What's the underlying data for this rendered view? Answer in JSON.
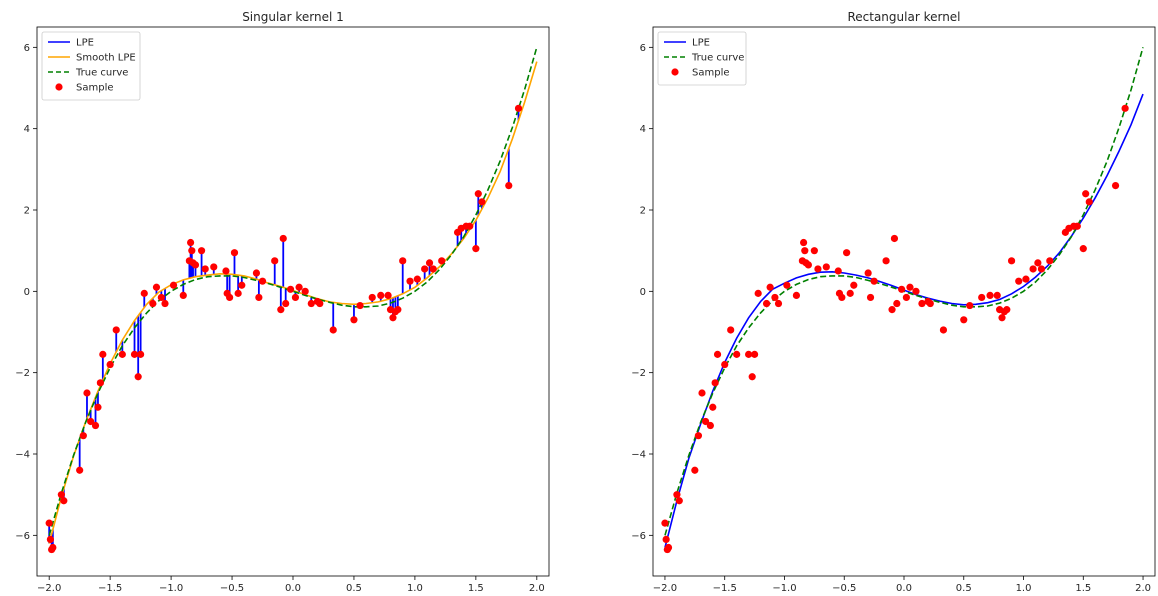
{
  "chart_data": [
    {
      "type": "line",
      "title": "Singular kernel 1",
      "xlabel": "",
      "ylabel": "",
      "xlim": [
        -2.1,
        2.1
      ],
      "ylim": [
        -7,
        6.5
      ],
      "xticks": [
        -2.0,
        -1.5,
        -1.0,
        -0.5,
        0.0,
        0.5,
        1.0,
        1.5,
        2.0
      ],
      "xtick_labels": [
        "−2.0",
        "−1.5",
        "−1.0",
        "−0.5",
        "0.0",
        "0.5",
        "1.0",
        "1.5",
        "2.0"
      ],
      "yticks": [
        -6,
        -4,
        -2,
        0,
        2,
        4,
        6
      ],
      "ytick_labels": [
        "−6",
        "−4",
        "−2",
        "0",
        "2",
        "4",
        "6"
      ],
      "grid": false,
      "legend_position": "top-left",
      "legend": [
        "LPE",
        "Smooth LPE",
        "True curve",
        "Sample"
      ],
      "colors": {
        "lpe": "#0000ff",
        "smooth": "#ffa500",
        "true": "#008000",
        "sample": "#ff0000"
      }
    },
    {
      "type": "line",
      "title": "Rectangular kernel",
      "xlabel": "",
      "ylabel": "",
      "xlim": [
        -2.1,
        2.1
      ],
      "ylim": [
        -7,
        6.5
      ],
      "xticks": [
        -2.0,
        -1.5,
        -1.0,
        -0.5,
        0.0,
        0.5,
        1.0,
        1.5,
        2.0
      ],
      "xtick_labels": [
        "−2.0",
        "−1.5",
        "−1.0",
        "−0.5",
        "0.0",
        "0.5",
        "1.0",
        "1.5",
        "2.0"
      ],
      "yticks": [
        -6,
        -4,
        -2,
        0,
        2,
        4,
        6
      ],
      "ytick_labels": [
        "−6",
        "−4",
        "−2",
        "0",
        "2",
        "4",
        "6"
      ],
      "grid": false,
      "legend_position": "top-left",
      "legend": [
        "LPE",
        "True curve",
        "Sample"
      ],
      "colors": {
        "lpe": "#0000ff",
        "true": "#008000",
        "sample": "#ff0000"
      }
    }
  ],
  "shared_series": {
    "true_curve": {
      "x": [
        -2.0,
        -1.9,
        -1.8,
        -1.7,
        -1.6,
        -1.5,
        -1.4,
        -1.3,
        -1.2,
        -1.1,
        -1.0,
        -0.9,
        -0.8,
        -0.7,
        -0.6,
        -0.5,
        -0.4,
        -0.3,
        -0.2,
        -0.1,
        0.0,
        0.1,
        0.2,
        0.3,
        0.4,
        0.5,
        0.6,
        0.7,
        0.8,
        0.9,
        1.0,
        1.1,
        1.2,
        1.3,
        1.4,
        1.5,
        1.6,
        1.7,
        1.8,
        1.9,
        2.0
      ],
      "y": [
        -6.0,
        -4.96,
        -4.03,
        -3.21,
        -2.5,
        -1.88,
        -1.34,
        -0.9,
        -0.53,
        -0.23,
        0.0,
        0.17,
        0.29,
        0.36,
        0.38,
        0.38,
        0.34,
        0.27,
        0.19,
        0.1,
        0.0,
        -0.1,
        -0.19,
        -0.27,
        -0.34,
        -0.38,
        -0.38,
        -0.36,
        -0.29,
        -0.17,
        0.0,
        0.23,
        0.53,
        0.9,
        1.34,
        1.88,
        2.5,
        3.21,
        4.03,
        4.96,
        6.0
      ]
    },
    "sample": {
      "x": [
        -2.0,
        -1.99,
        -1.98,
        -1.97,
        -1.9,
        -1.88,
        -1.75,
        -1.72,
        -1.69,
        -1.66,
        -1.62,
        -1.6,
        -1.58,
        -1.56,
        -1.5,
        -1.45,
        -1.4,
        -1.3,
        -1.27,
        -1.25,
        -1.22,
        -1.15,
        -1.12,
        -1.08,
        -1.05,
        -0.98,
        -0.9,
        -0.85,
        -0.84,
        -0.83,
        -0.82,
        -0.8,
        -0.75,
        -0.72,
        -0.65,
        -0.55,
        -0.54,
        -0.52,
        -0.48,
        -0.45,
        -0.42,
        -0.3,
        -0.28,
        -0.25,
        -0.15,
        -0.1,
        -0.08,
        -0.06,
        -0.02,
        0.02,
        0.05,
        0.1,
        0.15,
        0.2,
        0.22,
        0.33,
        0.5,
        0.55,
        0.65,
        0.72,
        0.78,
        0.8,
        0.82,
        0.84,
        0.86,
        0.9,
        0.96,
        1.02,
        1.08,
        1.12,
        1.15,
        1.22,
        1.35,
        1.38,
        1.42,
        1.45,
        1.5,
        1.52,
        1.55,
        1.77,
        1.85
      ],
      "y": [
        -5.7,
        -6.1,
        -6.35,
        -6.3,
        -5.0,
        -5.15,
        -4.4,
        -3.55,
        -2.5,
        -3.2,
        -3.3,
        -2.85,
        -2.25,
        -1.55,
        -1.8,
        -0.95,
        -1.55,
        -1.55,
        -2.1,
        -1.55,
        -0.05,
        -0.3,
        0.1,
        -0.15,
        -0.3,
        0.15,
        -0.1,
        0.75,
        1.2,
        1.0,
        0.7,
        0.65,
        1.0,
        0.55,
        0.6,
        0.5,
        -0.05,
        -0.15,
        0.95,
        -0.05,
        0.15,
        0.45,
        -0.15,
        0.25,
        0.75,
        -0.45,
        1.3,
        -0.3,
        0.05,
        -0.15,
        0.1,
        0.0,
        -0.3,
        -0.25,
        -0.3,
        -0.95,
        -0.7,
        -0.35,
        -0.15,
        -0.1,
        -0.1,
        -0.45,
        -0.65,
        -0.5,
        -0.45,
        0.75,
        0.25,
        0.3,
        0.55,
        0.7,
        0.55,
        0.75,
        1.45,
        1.55,
        1.6,
        1.6,
        1.05,
        2.4,
        2.2,
        2.6,
        4.5
      ]
    },
    "rect_lpe": {
      "x": [
        -2.0,
        -1.9,
        -1.8,
        -1.7,
        -1.6,
        -1.5,
        -1.4,
        -1.3,
        -1.2,
        -1.1,
        -1.0,
        -0.9,
        -0.8,
        -0.7,
        -0.6,
        -0.5,
        -0.4,
        -0.3,
        -0.2,
        -0.1,
        0.0,
        0.1,
        0.2,
        0.3,
        0.4,
        0.5,
        0.6,
        0.7,
        0.8,
        0.9,
        1.0,
        1.1,
        1.2,
        1.3,
        1.4,
        1.5,
        1.6,
        1.7,
        1.8,
        1.9,
        2.0
      ],
      "y": [
        -6.3,
        -5.15,
        -4.1,
        -3.25,
        -2.45,
        -1.75,
        -1.15,
        -0.65,
        -0.25,
        0.05,
        0.2,
        0.33,
        0.42,
        0.47,
        0.48,
        0.45,
        0.4,
        0.33,
        0.24,
        0.14,
        0.03,
        -0.08,
        -0.17,
        -0.24,
        -0.3,
        -0.33,
        -0.32,
        -0.28,
        -0.2,
        -0.06,
        0.12,
        0.35,
        0.62,
        0.95,
        1.35,
        1.8,
        2.3,
        2.85,
        3.45,
        4.1,
        4.85
      ]
    },
    "smooth_lpe": {
      "x": [
        -2.0,
        -1.9,
        -1.8,
        -1.7,
        -1.6,
        -1.5,
        -1.4,
        -1.3,
        -1.2,
        -1.1,
        -1.0,
        -0.9,
        -0.8,
        -0.7,
        -0.6,
        -0.5,
        -0.4,
        -0.3,
        -0.2,
        -0.1,
        0.0,
        0.1,
        0.2,
        0.3,
        0.4,
        0.5,
        0.6,
        0.7,
        0.8,
        0.9,
        1.0,
        1.1,
        1.2,
        1.3,
        1.4,
        1.5,
        1.6,
        1.7,
        1.8,
        1.9,
        2.0
      ],
      "y": [
        -6.2,
        -5.05,
        -4.05,
        -3.2,
        -2.45,
        -1.78,
        -1.2,
        -0.72,
        -0.32,
        -0.02,
        0.16,
        0.28,
        0.36,
        0.4,
        0.43,
        0.42,
        0.38,
        0.3,
        0.2,
        0.12,
        0.02,
        -0.08,
        -0.18,
        -0.26,
        -0.3,
        -0.32,
        -0.3,
        -0.26,
        -0.18,
        -0.06,
        0.1,
        0.33,
        0.6,
        0.92,
        1.3,
        1.75,
        2.3,
        2.95,
        3.75,
        4.65,
        5.65
      ]
    }
  }
}
